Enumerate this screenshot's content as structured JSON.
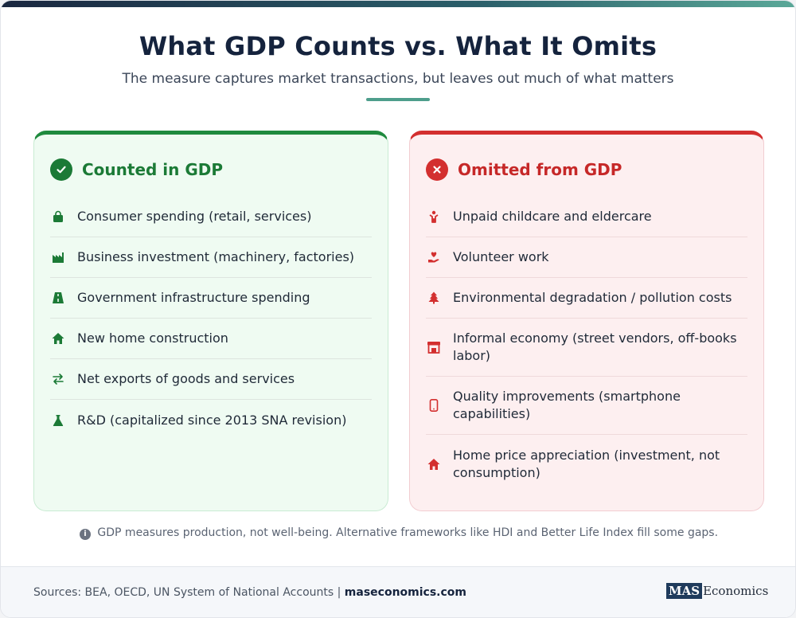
{
  "header": {
    "title": "What GDP Counts vs. What It Omits",
    "subtitle": "The measure captures market transactions, but leaves out much of what matters"
  },
  "counted": {
    "title": "Counted in GDP",
    "icon": "check-circle-icon",
    "color": "#1b7a36",
    "items": [
      {
        "label": "Consumer spending (retail, services)",
        "icon": "shopping-bag-icon"
      },
      {
        "label": "Business investment (machinery, factories)",
        "icon": "factory-icon"
      },
      {
        "label": "Government infrastructure spending",
        "icon": "road-icon"
      },
      {
        "label": "New home construction",
        "icon": "house-icon"
      },
      {
        "label": "Net exports of goods and services",
        "icon": "exchange-arrows-icon"
      },
      {
        "label": "R&D (capitalized since 2013 SNA revision)",
        "icon": "flask-icon"
      }
    ]
  },
  "omitted": {
    "title": "Omitted from GDP",
    "icon": "x-circle-icon",
    "color": "#c62828",
    "items": [
      {
        "label": "Unpaid childcare and eldercare",
        "icon": "child-icon"
      },
      {
        "label": "Volunteer work",
        "icon": "hand-heart-icon"
      },
      {
        "label": "Environmental degradation / pollution costs",
        "icon": "tree-icon"
      },
      {
        "label": "Informal economy (street vendors, off-books labor)",
        "icon": "store-icon"
      },
      {
        "label": "Quality improvements (smartphone capabilities)",
        "icon": "smartphone-icon"
      },
      {
        "label": "Home price appreciation (investment, not consumption)",
        "icon": "house-icon"
      }
    ]
  },
  "note": "GDP measures production, not well-being. Alternative frameworks like HDI and Better Life Index fill some gaps.",
  "footer": {
    "sources": "Sources: BEA, OECD, UN System of National Accounts |",
    "site": "maseconomics.com",
    "logo_box": "MAS",
    "logo_text": "Economics"
  }
}
